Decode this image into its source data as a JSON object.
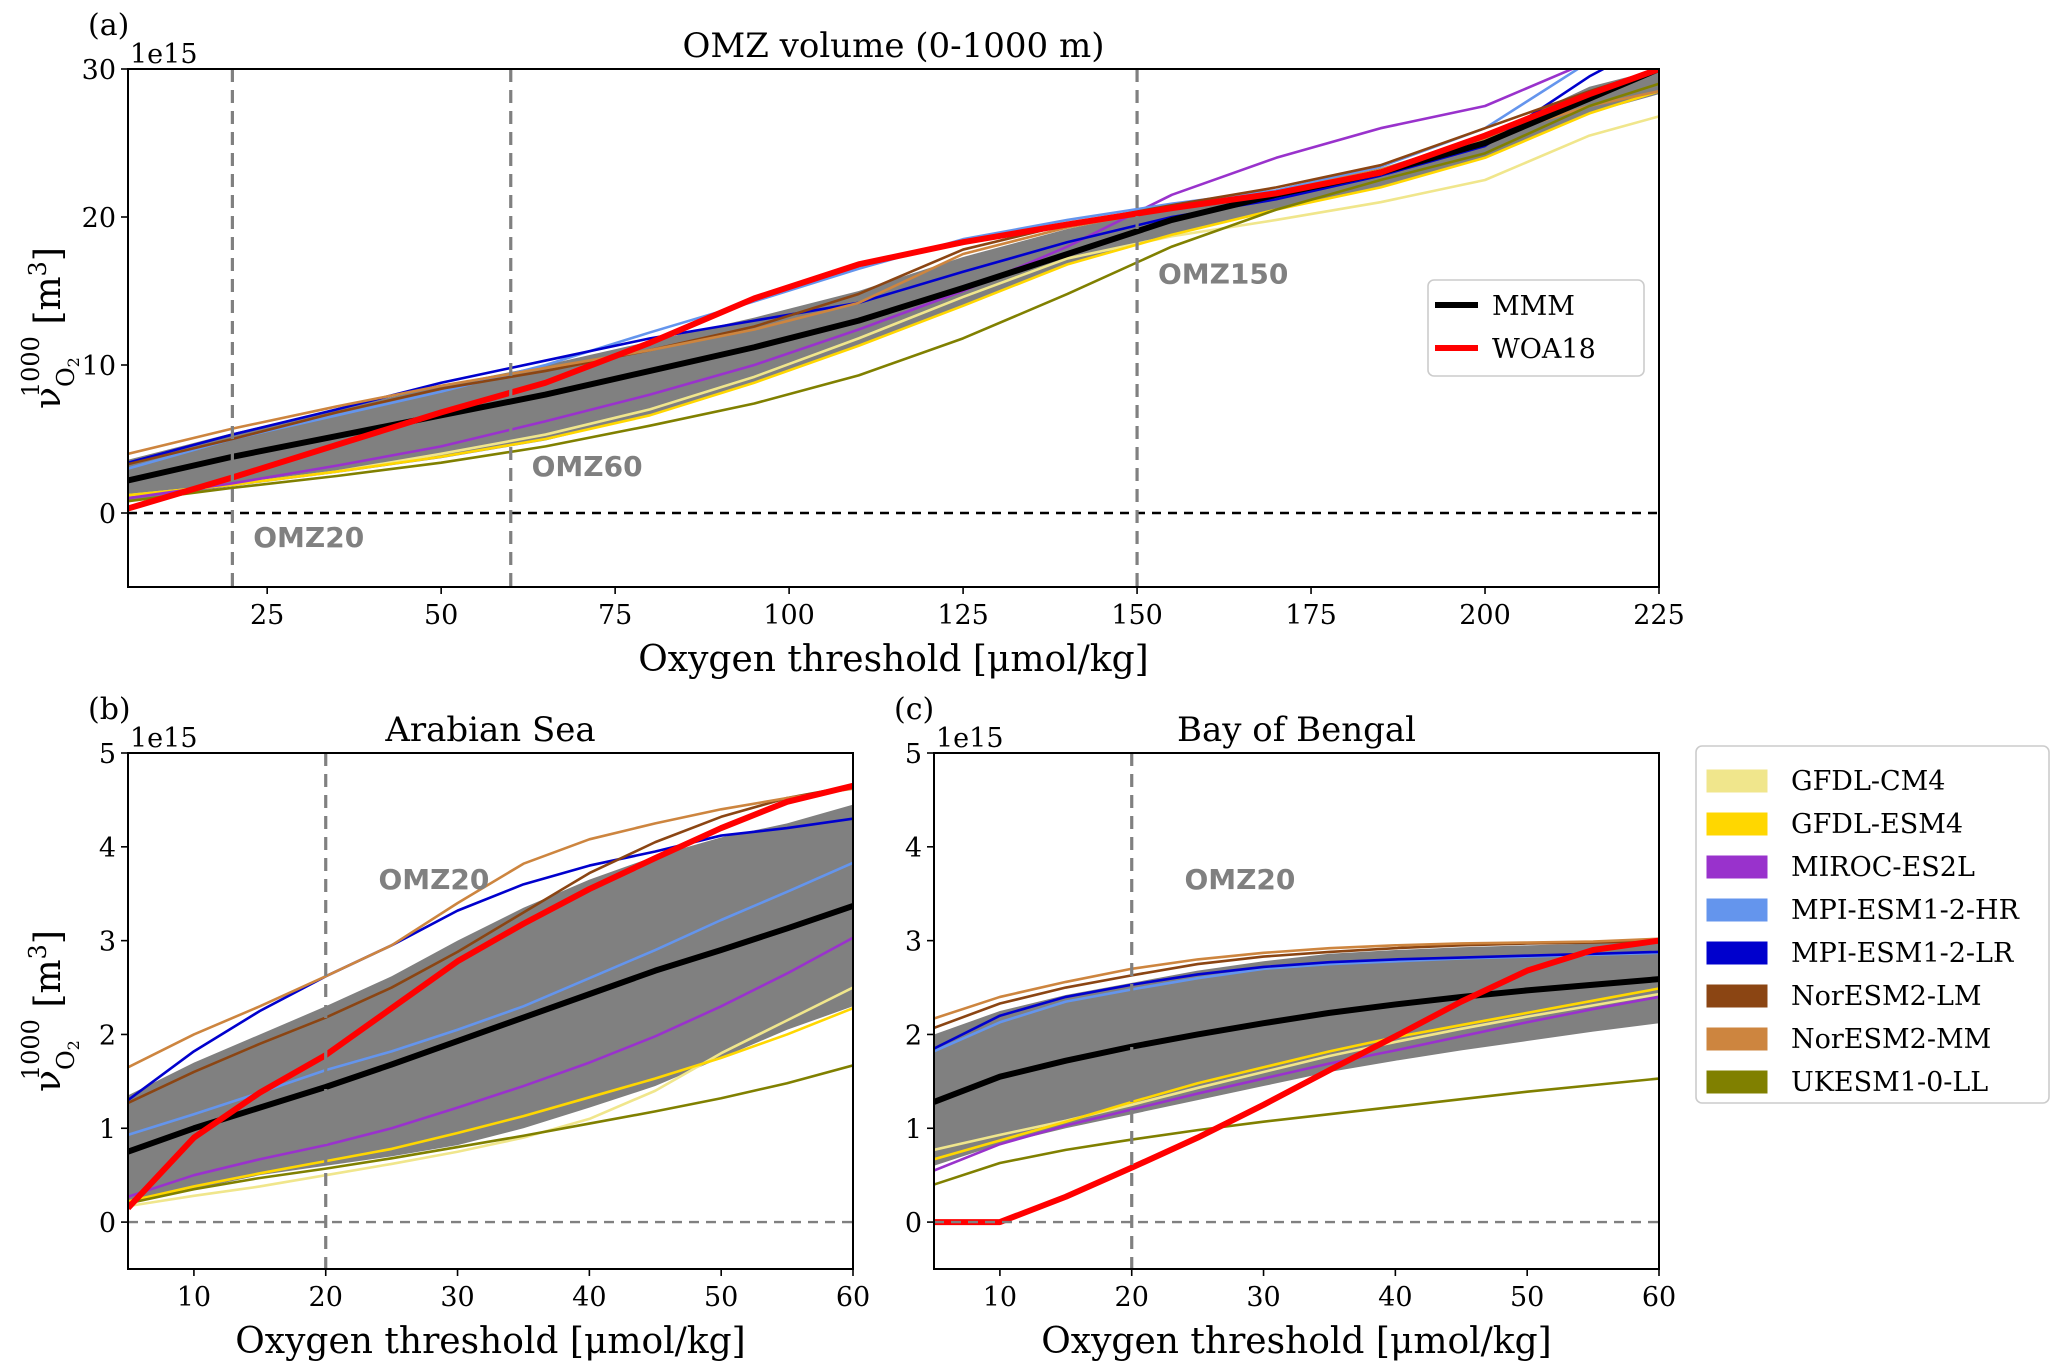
{
  "chart_data": [
    {
      "type": "line",
      "panel_letter": "(a)",
      "title": "OMZ volume (0-1000 m)",
      "xlabel": "Oxygen threshold [μmol/kg]",
      "ylabel": "ν O2 1000 [m3]",
      "ylabel_parts": {
        "symbol": "ν",
        "sub": "O",
        "sub2": "2",
        "sup": "1000",
        "unit": "[m",
        "unit_sup": "3",
        "unit_close": "]"
      },
      "y_offset_text": "1e15",
      "xlim": [
        5,
        225
      ],
      "ylim": [
        -5,
        30
      ],
      "xticks": [
        25,
        50,
        75,
        100,
        125,
        150,
        175,
        200,
        225
      ],
      "yticks": [
        0,
        10,
        20,
        30
      ],
      "grid": false,
      "legend_position": "center-right",
      "legend": [
        {
          "name": "MMM",
          "color": "#000000"
        },
        {
          "name": "WOA18",
          "color": "#ff0000"
        }
      ],
      "hline_zero": {
        "y": 0,
        "style": "dashed",
        "color": "#000000"
      },
      "vlines": [
        {
          "x": 20,
          "label": "OMZ20",
          "label_pos": [
            23,
            -2.3
          ]
        },
        {
          "x": 60,
          "label": "OMZ60",
          "label_pos": [
            63,
            2.5
          ]
        },
        {
          "x": 150,
          "label": "OMZ150",
          "label_pos": [
            153,
            15.5
          ]
        }
      ],
      "x": [
        5,
        20,
        35,
        50,
        65,
        80,
        95,
        110,
        125,
        140,
        155,
        170,
        185,
        200,
        215,
        225
      ],
      "band": {
        "upper": [
          3.6,
          5.4,
          7.0,
          8.6,
          10.0,
          11.6,
          13.2,
          15.0,
          17.3,
          19.2,
          20.6,
          21.8,
          23.3,
          25.5,
          28.8,
          30.0
        ],
        "lower": [
          0.8,
          1.8,
          2.7,
          3.7,
          4.9,
          6.6,
          8.8,
          11.3,
          14.0,
          16.8,
          18.8,
          20.5,
          22.0,
          24.0,
          27.0,
          28.3
        ]
      },
      "series": [
        {
          "name": "GFDL-CM4",
          "values": [
            1.2,
            1.9,
            2.8,
            4.0,
            5.3,
            7.0,
            9.2,
            11.8,
            14.6,
            17.2,
            18.7,
            19.8,
            21.0,
            22.5,
            25.5,
            26.8
          ]
        },
        {
          "name": "GFDL-ESM4",
          "values": [
            1.2,
            1.9,
            2.8,
            3.8,
            5.0,
            6.6,
            8.8,
            11.3,
            14.0,
            16.8,
            18.8,
            20.5,
            22.0,
            24.0,
            27.0,
            28.5
          ]
        },
        {
          "name": "MIROC-ES2L",
          "values": [
            1.0,
            2.0,
            3.2,
            4.5,
            6.2,
            8.0,
            10.0,
            12.4,
            15.0,
            18.0,
            21.5,
            24.0,
            26.0,
            27.5,
            30.5,
            32.0
          ]
        },
        {
          "name": "MPI-ESM1-2-HR",
          "values": [
            3.0,
            5.0,
            6.6,
            8.2,
            10.0,
            12.2,
            14.3,
            16.5,
            18.5,
            19.8,
            20.9,
            21.8,
            23.4,
            26.0,
            30.5,
            32.0
          ]
        },
        {
          "name": "MPI-ESM1-2-LR",
          "values": [
            3.4,
            5.3,
            7.0,
            8.8,
            10.3,
            11.8,
            13.0,
            14.2,
            16.3,
            18.3,
            20.0,
            21.2,
            22.8,
            24.8,
            29.5,
            32.0
          ]
        },
        {
          "name": "NorESM2-LM",
          "values": [
            3.3,
            5.0,
            6.8,
            8.4,
            9.6,
            11.0,
            12.6,
            14.8,
            17.8,
            19.5,
            20.8,
            22.0,
            23.5,
            26.0,
            28.5,
            30.0
          ]
        },
        {
          "name": "NorESM2-MM",
          "values": [
            4.0,
            5.7,
            7.2,
            8.6,
            9.8,
            11.0,
            12.4,
            14.2,
            17.5,
            19.3,
            20.6,
            21.7,
            23.2,
            25.3,
            27.5,
            28.5
          ]
        },
        {
          "name": "UKESM1-0-LL",
          "values": [
            0.8,
            1.7,
            2.5,
            3.4,
            4.5,
            5.9,
            7.4,
            9.3,
            11.8,
            14.8,
            18.0,
            20.5,
            22.5,
            24.3,
            27.5,
            29.0
          ]
        },
        {
          "name": "MMM",
          "values": [
            2.2,
            3.8,
            5.2,
            6.6,
            8.0,
            9.6,
            11.2,
            13.0,
            15.2,
            17.5,
            19.8,
            21.5,
            23.0,
            25.0,
            28.0,
            30.0
          ]
        },
        {
          "name": "WOA18",
          "values": [
            0.3,
            2.4,
            4.6,
            6.8,
            8.8,
            11.5,
            14.5,
            16.8,
            18.3,
            19.5,
            20.6,
            21.6,
            23.0,
            25.5,
            28.3,
            30.0
          ]
        }
      ]
    },
    {
      "type": "line",
      "panel_letter": "(b)",
      "title": "Arabian Sea",
      "xlabel": "Oxygen threshold [μmol/kg]",
      "ylabel": "ν O2 1000 [m3]",
      "y_offset_text": "1e15",
      "xlim": [
        5,
        60
      ],
      "ylim": [
        -0.5,
        5
      ],
      "xticks": [
        10,
        20,
        30,
        40,
        50,
        60
      ],
      "yticks": [
        0,
        1,
        2,
        3,
        4,
        5
      ],
      "grid": false,
      "hline_zero": {
        "y": 0,
        "style": "dashed",
        "color": "#808080"
      },
      "vlines": [
        {
          "x": 20,
          "label": "OMZ20",
          "label_pos": [
            24,
            3.55
          ]
        }
      ],
      "x": [
        5,
        10,
        15,
        20,
        25,
        30,
        35,
        40,
        45,
        50,
        55,
        60
      ],
      "band": {
        "upper": [
          1.35,
          1.7,
          2.0,
          2.3,
          2.62,
          3.0,
          3.35,
          3.65,
          3.9,
          4.1,
          4.25,
          4.45
        ],
        "lower": [
          0.2,
          0.35,
          0.5,
          0.6,
          0.7,
          0.82,
          1.0,
          1.22,
          1.45,
          1.75,
          2.05,
          2.3
        ]
      },
      "series": [
        {
          "name": "GFDL-CM4",
          "values": [
            0.17,
            0.28,
            0.38,
            0.5,
            0.62,
            0.75,
            0.9,
            1.1,
            1.4,
            1.8,
            2.15,
            2.5
          ]
        },
        {
          "name": "GFDL-ESM4",
          "values": [
            0.22,
            0.38,
            0.52,
            0.65,
            0.78,
            0.95,
            1.13,
            1.33,
            1.53,
            1.75,
            2.0,
            2.28
          ]
        },
        {
          "name": "MIROC-ES2L",
          "values": [
            0.27,
            0.5,
            0.67,
            0.82,
            1.0,
            1.22,
            1.45,
            1.7,
            1.98,
            2.3,
            2.65,
            3.03
          ]
        },
        {
          "name": "MPI-ESM1-2-HR",
          "values": [
            0.93,
            1.15,
            1.38,
            1.62,
            1.82,
            2.05,
            2.3,
            2.6,
            2.9,
            3.22,
            3.52,
            3.83
          ]
        },
        {
          "name": "MPI-ESM1-2-LR",
          "values": [
            1.3,
            1.82,
            2.25,
            2.62,
            2.95,
            3.32,
            3.6,
            3.8,
            3.95,
            4.12,
            4.2,
            4.3
          ]
        },
        {
          "name": "NorESM2-LM",
          "values": [
            1.27,
            1.6,
            1.9,
            2.18,
            2.5,
            2.88,
            3.3,
            3.72,
            4.05,
            4.32,
            4.52,
            4.65
          ]
        },
        {
          "name": "NorESM2-MM",
          "values": [
            1.65,
            2.0,
            2.3,
            2.62,
            2.95,
            3.4,
            3.82,
            4.08,
            4.25,
            4.4,
            4.52,
            4.62
          ]
        },
        {
          "name": "UKESM1-0-LL",
          "values": [
            0.2,
            0.35,
            0.47,
            0.57,
            0.68,
            0.8,
            0.92,
            1.05,
            1.18,
            1.32,
            1.48,
            1.67
          ]
        },
        {
          "name": "MMM",
          "values": [
            0.75,
            1.0,
            1.22,
            1.44,
            1.68,
            1.93,
            2.18,
            2.43,
            2.68,
            2.9,
            3.13,
            3.37
          ]
        },
        {
          "name": "WOA18",
          "values": [
            0.15,
            0.9,
            1.38,
            1.78,
            2.28,
            2.78,
            3.18,
            3.55,
            3.88,
            4.2,
            4.48,
            4.65
          ]
        }
      ]
    },
    {
      "type": "line",
      "panel_letter": "(c)",
      "title": "Bay of Bengal",
      "xlabel": "Oxygen threshold [μmol/kg]",
      "ylabel": "",
      "y_offset_text": "1e15",
      "xlim": [
        5,
        60
      ],
      "ylim": [
        -0.5,
        5
      ],
      "xticks": [
        10,
        20,
        30,
        40,
        50,
        60
      ],
      "yticks": [
        0,
        1,
        2,
        3,
        4,
        5
      ],
      "grid": false,
      "hline_zero": {
        "y": 0,
        "style": "dashed",
        "color": "#808080"
      },
      "vlines": [
        {
          "x": 20,
          "label": "OMZ20",
          "label_pos": [
            24,
            3.55
          ]
        }
      ],
      "x": [
        5,
        10,
        15,
        20,
        25,
        30,
        35,
        40,
        45,
        50,
        55,
        60
      ],
      "band": {
        "upper": [
          2.0,
          2.25,
          2.42,
          2.55,
          2.68,
          2.78,
          2.86,
          2.9,
          2.93,
          2.95,
          2.97,
          3.02
        ],
        "lower": [
          0.6,
          0.83,
          1.0,
          1.15,
          1.3,
          1.45,
          1.6,
          1.72,
          1.83,
          1.93,
          2.03,
          2.12
        ]
      },
      "series": [
        {
          "name": "GFDL-CM4",
          "values": [
            0.77,
            0.93,
            1.08,
            1.25,
            1.43,
            1.6,
            1.77,
            1.92,
            2.06,
            2.19,
            2.31,
            2.43
          ]
        },
        {
          "name": "GFDL-ESM4",
          "values": [
            0.67,
            0.87,
            1.07,
            1.28,
            1.48,
            1.65,
            1.82,
            1.97,
            2.1,
            2.23,
            2.36,
            2.49
          ]
        },
        {
          "name": "MIROC-ES2L",
          "values": [
            0.55,
            0.83,
            1.03,
            1.2,
            1.37,
            1.53,
            1.69,
            1.83,
            1.98,
            2.13,
            2.27,
            2.4
          ]
        },
        {
          "name": "MPI-ESM1-2-HR",
          "values": [
            1.82,
            2.13,
            2.35,
            2.48,
            2.6,
            2.7,
            2.75,
            2.78,
            2.81,
            2.83,
            2.85,
            2.87
          ]
        },
        {
          "name": "MPI-ESM1-2-LR",
          "values": [
            1.85,
            2.2,
            2.4,
            2.53,
            2.64,
            2.72,
            2.77,
            2.8,
            2.82,
            2.84,
            2.86,
            2.88
          ]
        },
        {
          "name": "NorESM2-LM",
          "values": [
            2.07,
            2.33,
            2.5,
            2.63,
            2.75,
            2.83,
            2.88,
            2.92,
            2.95,
            2.97,
            2.98,
            3.0
          ]
        },
        {
          "name": "NorESM2-MM",
          "values": [
            2.17,
            2.4,
            2.56,
            2.7,
            2.8,
            2.87,
            2.92,
            2.95,
            2.97,
            2.98,
            2.99,
            3.02
          ]
        },
        {
          "name": "UKESM1-0-LL",
          "values": [
            0.4,
            0.63,
            0.77,
            0.88,
            0.98,
            1.07,
            1.15,
            1.23,
            1.31,
            1.39,
            1.46,
            1.53
          ]
        },
        {
          "name": "MMM",
          "values": [
            1.28,
            1.55,
            1.72,
            1.87,
            2.0,
            2.12,
            2.23,
            2.32,
            2.4,
            2.47,
            2.53,
            2.59
          ]
        },
        {
          "name": "WOA18",
          "values": [
            0.0,
            0.0,
            0.27,
            0.58,
            0.9,
            1.25,
            1.62,
            1.98,
            2.35,
            2.68,
            2.9,
            3.0
          ]
        }
      ]
    }
  ],
  "models_legend": [
    {
      "name": "GFDL-CM4",
      "color": "#F0E68C"
    },
    {
      "name": "GFDL-ESM4",
      "color": "#FFD700"
    },
    {
      "name": "MIROC-ES2L",
      "color": "#9932CC"
    },
    {
      "name": "MPI-ESM1-2-HR",
      "color": "#6495ED"
    },
    {
      "name": "MPI-ESM1-2-LR",
      "color": "#0000CD"
    },
    {
      "name": "NorESM2-LM",
      "color": "#8B4513"
    },
    {
      "name": "NorESM2-MM",
      "color": "#CD853F"
    },
    {
      "name": "UKESM1-0-LL",
      "color": "#808000"
    }
  ],
  "series_colors": {
    "GFDL-CM4": "#F0E68C",
    "GFDL-ESM4": "#FFD700",
    "MIROC-ES2L": "#9932CC",
    "MPI-ESM1-2-HR": "#6495ED",
    "MPI-ESM1-2-LR": "#0000CD",
    "NorESM2-LM": "#8B4513",
    "NorESM2-MM": "#CD853F",
    "UKESM1-0-LL": "#808000",
    "MMM": "#000000",
    "WOA18": "#ff0000"
  },
  "band_color": "#808080"
}
